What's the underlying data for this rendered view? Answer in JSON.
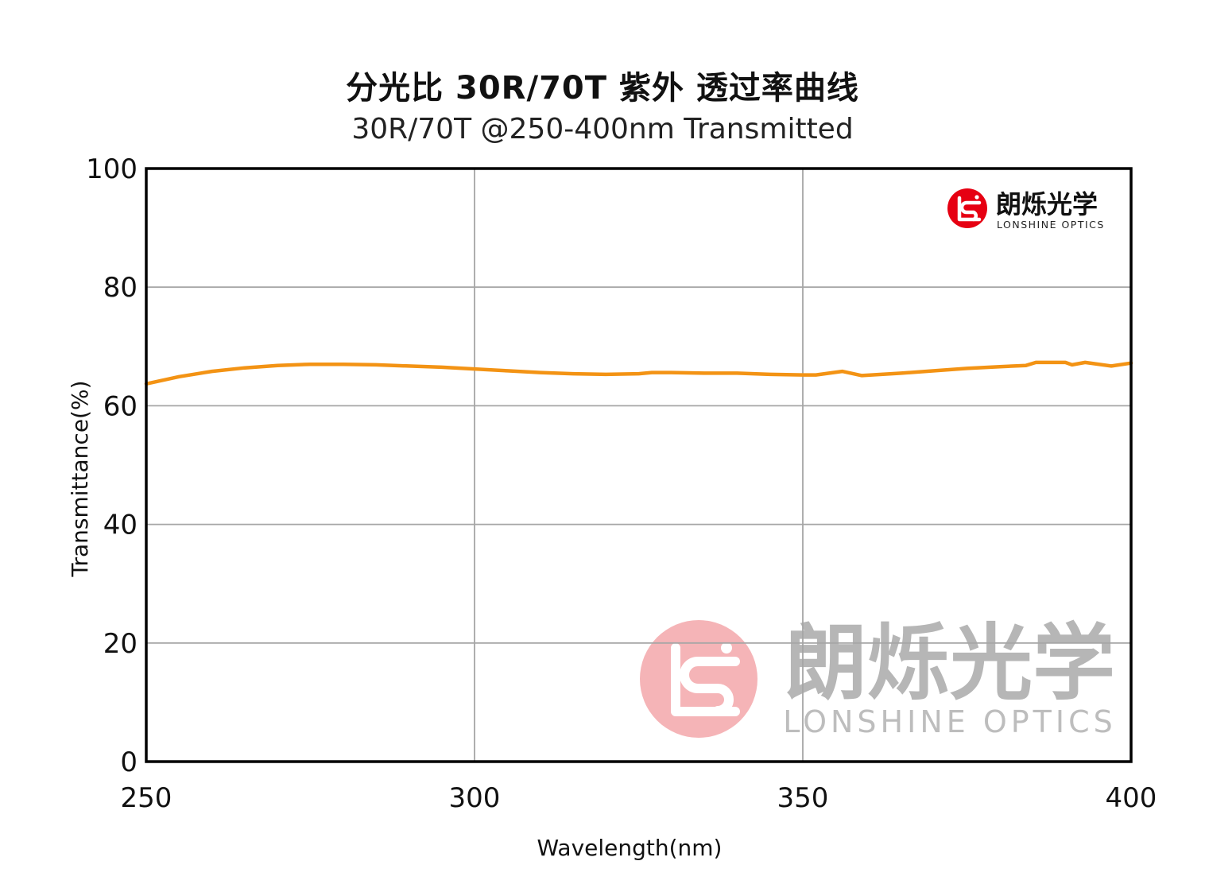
{
  "chart_data": {
    "type": "line",
    "title": "分光比 30R/70T 紫外 透过率曲线",
    "subtitle": "30R/70T @250-400nm  Transmitted",
    "xlabel": "Wavelength(nm)",
    "ylabel": "Transmittance(%)",
    "xlim": [
      250,
      400
    ],
    "ylim": [
      0,
      100
    ],
    "xticks": [
      250,
      300,
      350,
      400
    ],
    "yticks": [
      0,
      20,
      40,
      60,
      80,
      100
    ],
    "grid": true,
    "series": [
      {
        "color": "#f39314",
        "x": [
          250,
          255,
          260,
          265,
          270,
          275,
          280,
          285,
          290,
          295,
          300,
          305,
          310,
          315,
          320,
          325,
          327,
          330,
          335,
          340,
          345,
          350,
          352,
          356,
          359,
          365,
          370,
          375,
          380,
          384,
          385.5,
          390,
          391,
          393,
          397,
          400
        ],
        "y": [
          63.7,
          64.9,
          65.8,
          66.4,
          66.8,
          67.0,
          67.0,
          66.9,
          66.7,
          66.5,
          66.2,
          65.9,
          65.6,
          65.4,
          65.3,
          65.4,
          65.6,
          65.6,
          65.5,
          65.5,
          65.3,
          65.2,
          65.2,
          65.8,
          65.1,
          65.5,
          65.9,
          66.3,
          66.6,
          66.8,
          67.3,
          67.3,
          66.9,
          67.3,
          66.7,
          67.2
        ]
      }
    ]
  },
  "logo": {
    "name_cn": "朗烁光学",
    "name_en": "LONSHINE OPTICS",
    "brand_color": "#e60012"
  },
  "watermark": {
    "name_cn": "朗烁光学",
    "name_en": "LONSHINE OPTICS",
    "color": "#f29c9f"
  }
}
